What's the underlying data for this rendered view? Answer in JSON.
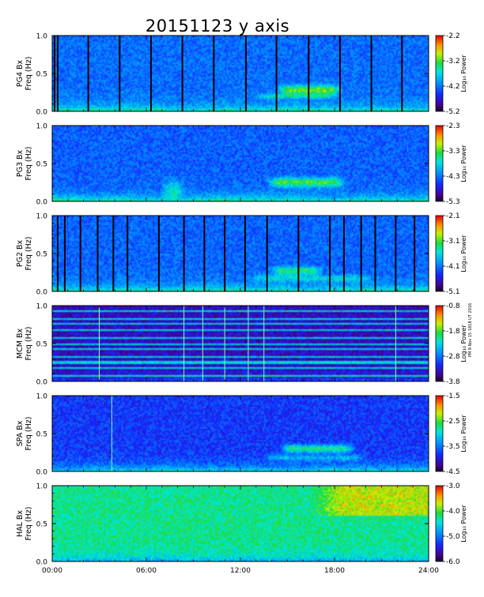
{
  "chart_data": {
    "type": "heatmap",
    "title": "20151123 y axis",
    "x_ticks": [
      "00:00",
      "06:00",
      "12:00",
      "18:00",
      "24:00"
    ],
    "x_hours": [
      0,
      6,
      12,
      18,
      24
    ],
    "x_range_hours": [
      0,
      24
    ],
    "side_stamp": "PM 9 Nov 15 1818 UT 2016",
    "panels": [
      {
        "station": "PG4 Bx",
        "ylabel": "Freq (Hz)",
        "y_ticks": [
          "0.0",
          "0.5",
          "1.0"
        ],
        "y_tick_values": [
          0.0,
          0.5,
          1.0
        ],
        "ylim": [
          0,
          1.0
        ],
        "cb_label": "Log₁₀ Power",
        "cb_ticks": [
          "-2.2",
          "-3.2",
          "-4.2",
          "-5.2"
        ],
        "cb_tick_values": [
          -2.2,
          -3.2,
          -4.2,
          -5.2
        ],
        "cb_range": [
          -5.2,
          -2.2
        ],
        "base_level": 0.32,
        "low_freq_enhancement": 0.32,
        "gaps_hours": [
          0.15,
          0.35,
          2.3,
          4.3,
          6.3,
          8.3,
          10.3,
          12.35,
          14.3,
          16.35,
          18.35,
          20.35,
          22.3
        ],
        "bands": [
          {
            "start_h": 14.2,
            "end_h": 18.6,
            "center_hz": 0.28,
            "width_hz": 0.06,
            "strength": 0.42
          },
          {
            "start_h": 12.8,
            "end_h": 18.2,
            "center_hz": 0.2,
            "width_hz": 0.03,
            "strength": 0.22
          }
        ]
      },
      {
        "station": "PG3 Bx",
        "ylabel": "Freq (Hz)",
        "y_ticks": [
          "0.0",
          "0.5",
          "1.0"
        ],
        "y_tick_values": [
          0.0,
          0.5,
          1.0
        ],
        "ylim": [
          0,
          1.0
        ],
        "cb_label": "Log₁₀ Power",
        "cb_ticks": [
          "-2.3",
          "-3.3",
          "-4.3",
          "-5.3"
        ],
        "cb_tick_values": [
          -2.3,
          -3.3,
          -4.3,
          -5.3
        ],
        "cb_range": [
          -5.3,
          -2.3
        ],
        "base_level": 0.3,
        "low_freq_enhancement": 0.34,
        "gaps_hours": [],
        "bands": [
          {
            "start_h": 13.6,
            "end_h": 18.8,
            "center_hz": 0.25,
            "width_hz": 0.06,
            "strength": 0.4
          },
          {
            "start_h": 6.8,
            "end_h": 8.6,
            "center_hz": 0.15,
            "width_hz": 0.12,
            "strength": 0.25
          }
        ]
      },
      {
        "station": "PG2 Bx",
        "ylabel": "Freq (Hz)",
        "y_ticks": [
          "0.0",
          "0.5",
          "1.0"
        ],
        "y_tick_values": [
          0.0,
          0.5,
          1.0
        ],
        "ylim": [
          0,
          1.0
        ],
        "cb_label": "Log₁₀ Power",
        "cb_ticks": [
          "-2.1",
          "-3.1",
          "-4.1",
          "-5.1"
        ],
        "cb_tick_values": [
          -2.1,
          -3.1,
          -4.1,
          -5.1
        ],
        "cb_range": [
          -5.1,
          -2.1
        ],
        "base_level": 0.31,
        "low_freq_enhancement": 0.32,
        "gaps_hours": [
          0.35,
          0.8,
          1.8,
          2.9,
          3.9,
          4.8,
          6.8,
          8.4,
          9.7,
          11.0,
          12.3,
          13.7,
          15.7,
          17.7,
          18.6,
          19.7,
          20.6,
          21.9,
          23.1
        ],
        "bands": [
          {
            "start_h": 13.8,
            "end_h": 17.4,
            "center_hz": 0.27,
            "width_hz": 0.05,
            "strength": 0.35
          },
          {
            "start_h": 12.5,
            "end_h": 20.5,
            "center_hz": 0.17,
            "width_hz": 0.04,
            "strength": 0.2
          }
        ]
      },
      {
        "station": "MCM Bx",
        "ylabel": "Freq (Hz)",
        "y_ticks": [
          "0.0",
          "0.5",
          "1.0"
        ],
        "y_tick_values": [
          0.0,
          0.5,
          1.0
        ],
        "ylim": [
          0,
          1.0
        ],
        "cb_label": "Log₁₀ Power",
        "cb_ticks": [
          "-0.8",
          "-1.8",
          "-2.8",
          "-3.8"
        ],
        "cb_tick_values": [
          -0.8,
          -1.8,
          -2.8,
          -3.8
        ],
        "cb_range": [
          -3.8,
          -0.8
        ],
        "base_level": 0.14,
        "low_freq_enhancement": 0.15,
        "harmonic_lines_hz": [
          0.083,
          0.167,
          0.25,
          0.333,
          0.417,
          0.5,
          0.583,
          0.667,
          0.75,
          0.833,
          0.917
        ],
        "spikes_hours": [
          3.0,
          8.4,
          9.6,
          11.0,
          12.5,
          13.5,
          21.9
        ],
        "gaps_hours": [],
        "bands": []
      },
      {
        "station": "SPA Bx",
        "ylabel": "Freq (Hz)",
        "y_ticks": [
          "0.0",
          "0.5",
          "1.0"
        ],
        "y_tick_values": [
          0.0,
          0.5,
          1.0
        ],
        "ylim": [
          0,
          1.0
        ],
        "cb_label": "Log₁₀ Power",
        "cb_ticks": [
          "-1.5",
          "-2.5",
          "-3.5",
          "-4.5"
        ],
        "cb_tick_values": [
          -1.5,
          -2.5,
          -3.5,
          -4.5
        ],
        "cb_range": [
          -4.5,
          -1.5
        ],
        "base_level": 0.24,
        "low_freq_enhancement": 0.34,
        "spikes_hours": [
          3.8
        ],
        "gaps_hours": [],
        "bands": [
          {
            "start_h": 14.4,
            "end_h": 19.4,
            "center_hz": 0.3,
            "width_hz": 0.05,
            "strength": 0.42
          },
          {
            "start_h": 13.4,
            "end_h": 20.0,
            "center_hz": 0.18,
            "width_hz": 0.04,
            "strength": 0.2
          }
        ]
      },
      {
        "station": "HAL Bx",
        "ylabel": "Freq (Hz)",
        "y_ticks": [
          "0.0",
          "0.5",
          "1.0"
        ],
        "y_tick_values": [
          0.0,
          0.5,
          1.0
        ],
        "ylim": [
          0,
          1.0
        ],
        "cb_label": "Log₁₀ Power",
        "cb_ticks": [
          "-3.0",
          "-4.0",
          "-5.0",
          "-6.0"
        ],
        "cb_tick_values": [
          -3.0,
          -4.0,
          -5.0,
          -6.0
        ],
        "cb_range": [
          -6.0,
          -3.0
        ],
        "base_level": 0.58,
        "low_freq_enhancement": -0.2,
        "hot_region": {
          "start_h": 16.5,
          "end_h": 24,
          "min_hz": 0.6,
          "strength": 0.22
        },
        "gaps_hours": [],
        "bands": []
      }
    ]
  }
}
